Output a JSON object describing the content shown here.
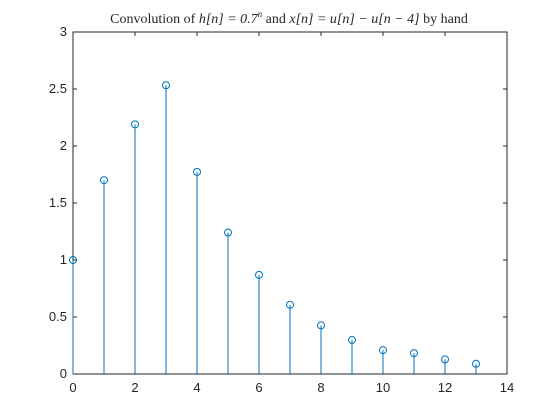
{
  "chart_data": {
    "type": "stem",
    "title": {
      "prefix": "Convolution of ",
      "h_term": "h[n] = 0.7",
      "h_exponent": "n",
      "middle": " and ",
      "x_term": "x[n] = u[n] − u[n − 4]",
      "suffix": " by hand"
    },
    "xlabel": "",
    "ylabel": "",
    "xlim": [
      0,
      14
    ],
    "ylim": [
      0,
      3
    ],
    "x_ticks": [
      0,
      2,
      4,
      6,
      8,
      10,
      12,
      14
    ],
    "y_ticks": [
      0,
      0.5,
      1,
      1.5,
      2,
      2.5,
      3
    ],
    "x_tick_labels": [
      "0",
      "2",
      "4",
      "6",
      "8",
      "10",
      "12",
      "14"
    ],
    "y_tick_labels": [
      "0",
      "0.5",
      "1",
      "1.5",
      "2",
      "2.5",
      "3"
    ],
    "grid": false,
    "marker": "circle",
    "color": "#0072BD",
    "axis_color": "#262626",
    "series": [
      {
        "x": [
          0,
          1,
          2,
          3,
          4,
          5,
          6,
          7,
          8,
          9,
          10,
          11,
          12,
          13
        ],
        "values": [
          1.0,
          1.7,
          2.19,
          2.533,
          1.773,
          1.241,
          0.869,
          0.608,
          0.426,
          0.298,
          0.209,
          0.183,
          0.128,
          0.09
        ]
      }
    ]
  }
}
